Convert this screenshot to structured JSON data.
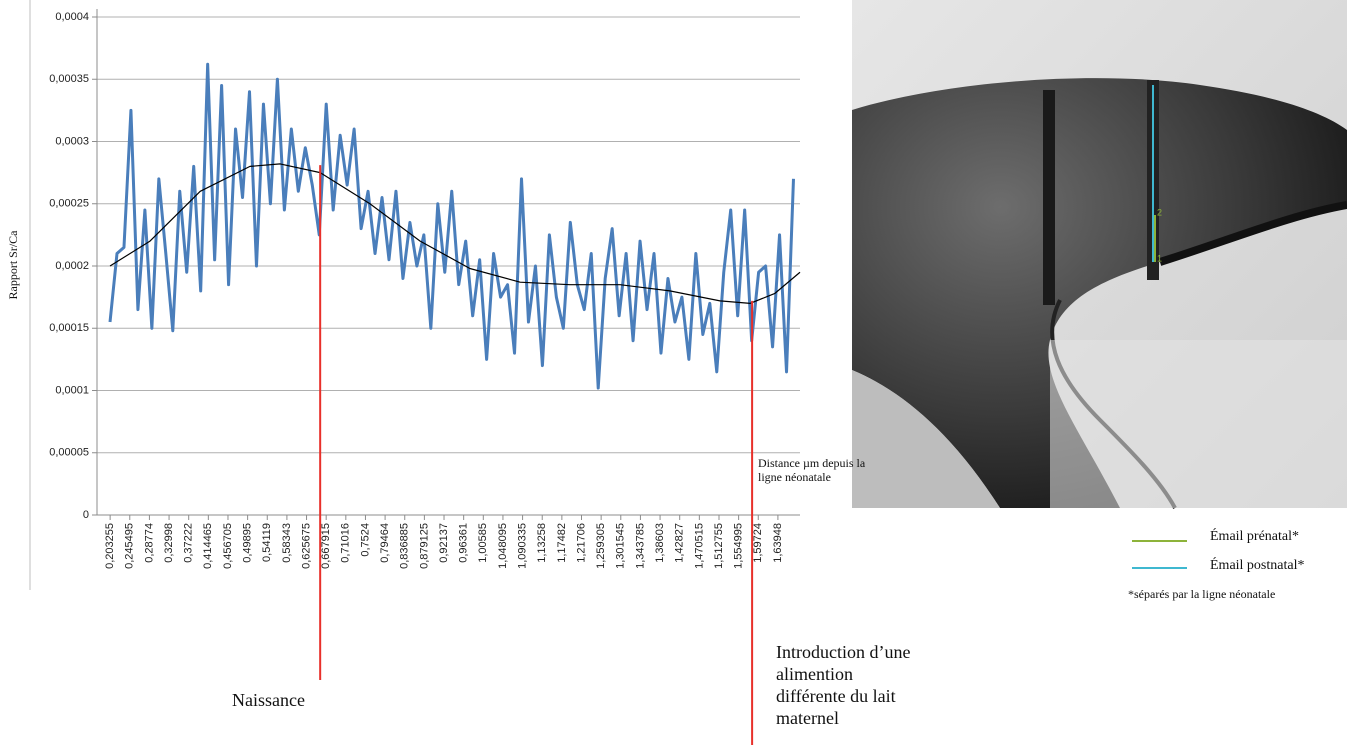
{
  "chart_data": {
    "type": "line",
    "y_label": "Rapport Sr/Ca",
    "x_label": "Distance µm depuis la ligne néonatale",
    "xlim": [
      0.175,
      1.687
    ],
    "ylim": [
      0,
      0.0004
    ],
    "grid": true,
    "yticks": [
      0,
      {
        "value": 5e-05,
        "label": "0,00005"
      },
      {
        "value": 0.0001,
        "label": "0,0001"
      },
      {
        "value": 0.00015,
        "label": "0,00015"
      },
      {
        "value": 0.0002,
        "label": "0,0002"
      },
      {
        "value": 0.00025,
        "label": "0,00025"
      },
      {
        "value": 0.0003,
        "label": "0,0003"
      },
      {
        "value": 0.00035,
        "label": "0,00035"
      },
      {
        "value": 0.0004,
        "label": "0,0004"
      }
    ],
    "xticks": [
      {
        "value": 0.203255,
        "label": "0,203255"
      },
      {
        "value": 0.245495,
        "label": "0,245495"
      },
      {
        "value": 0.28774,
        "label": "0,28774"
      },
      {
        "value": 0.32998,
        "label": "0,32998"
      },
      {
        "value": 0.37222,
        "label": "0,37222"
      },
      {
        "value": 0.414465,
        "label": "0,414465"
      },
      {
        "value": 0.456705,
        "label": "0,456705"
      },
      {
        "value": 0.49895,
        "label": "0,49895"
      },
      {
        "value": 0.54119,
        "label": "0,54119"
      },
      {
        "value": 0.58343,
        "label": "0,58343"
      },
      {
        "value": 0.625675,
        "label": "0,625675"
      },
      {
        "value": 0.667915,
        "label": "0,667915"
      },
      {
        "value": 0.71016,
        "label": "0,71016"
      },
      {
        "value": 0.7524,
        "label": "0,7524"
      },
      {
        "value": 0.79464,
        "label": "0,79464"
      },
      {
        "value": 0.836885,
        "label": "0,836885"
      },
      {
        "value": 0.879125,
        "label": "0,879125"
      },
      {
        "value": 0.92137,
        "label": "0,92137"
      },
      {
        "value": 0.96361,
        "label": "0,96361"
      },
      {
        "value": 1.00585,
        "label": "1,00585"
      },
      {
        "value": 1.048095,
        "label": "1,048095"
      },
      {
        "value": 1.090335,
        "label": "1,090335"
      },
      {
        "value": 1.13258,
        "label": "1,13258"
      },
      {
        "value": 1.17482,
        "label": "1,17482"
      },
      {
        "value": 1.21706,
        "label": "1,21706"
      },
      {
        "value": 1.259305,
        "label": "1,259305"
      },
      {
        "value": 1.301545,
        "label": "1,301545"
      },
      {
        "value": 1.343785,
        "label": "1,343785"
      },
      {
        "value": 1.38603,
        "label": "1,38603"
      },
      {
        "value": 1.42827,
        "label": "1,42827"
      },
      {
        "value": 1.470515,
        "label": "1,470515"
      },
      {
        "value": 1.512755,
        "label": "1,512755"
      },
      {
        "value": 1.554995,
        "label": "1,554995"
      },
      {
        "value": 1.59724,
        "label": "1,59724"
      },
      {
        "value": 1.63948,
        "label": "1,63948"
      }
    ],
    "series": [
      {
        "color": "#4a7ebb",
        "x": [
          0.203,
          0.218,
          0.233,
          0.248,
          0.263,
          0.278,
          0.293,
          0.308,
          0.323,
          0.338,
          0.353,
          0.368,
          0.383,
          0.398,
          0.413,
          0.428,
          0.443,
          0.458,
          0.473,
          0.488,
          0.503,
          0.518,
          0.533,
          0.548,
          0.563,
          0.578,
          0.593,
          0.608,
          0.623,
          0.638,
          0.653,
          0.668,
          0.683,
          0.698,
          0.713,
          0.728,
          0.743,
          0.758,
          0.773,
          0.788,
          0.803,
          0.818,
          0.833,
          0.848,
          0.863,
          0.878,
          0.893,
          0.908,
          0.923,
          0.938,
          0.953,
          0.968,
          0.983,
          0.998,
          1.013,
          1.028,
          1.043,
          1.058,
          1.073,
          1.088,
          1.103,
          1.118,
          1.133,
          1.148,
          1.163,
          1.178,
          1.193,
          1.208,
          1.223,
          1.238,
          1.253,
          1.268,
          1.283,
          1.298,
          1.313,
          1.328,
          1.343,
          1.358,
          1.373,
          1.388,
          1.403,
          1.418,
          1.433,
          1.448,
          1.463,
          1.478,
          1.493,
          1.508,
          1.523,
          1.538,
          1.553,
          1.568,
          1.583,
          1.598,
          1.613,
          1.628,
          1.643,
          1.658,
          1.673
        ],
        "values": [
          0.000155,
          0.00021,
          0.000215,
          0.000325,
          0.000165,
          0.000245,
          0.00015,
          0.00027,
          0.00021,
          0.000148,
          0.00026,
          0.000195,
          0.00028,
          0.00018,
          0.000362,
          0.000205,
          0.000345,
          0.000185,
          0.00031,
          0.000255,
          0.00034,
          0.0002,
          0.00033,
          0.00025,
          0.00035,
          0.000245,
          0.00031,
          0.00026,
          0.000295,
          0.000265,
          0.000225,
          0.00033,
          0.000245,
          0.000305,
          0.000265,
          0.00031,
          0.00023,
          0.00026,
          0.00021,
          0.000255,
          0.000205,
          0.00026,
          0.00019,
          0.000235,
          0.0002,
          0.000225,
          0.00015,
          0.00025,
          0.000195,
          0.00026,
          0.000185,
          0.00022,
          0.00016,
          0.000205,
          0.000125,
          0.00021,
          0.000175,
          0.000185,
          0.00013,
          0.00027,
          0.000155,
          0.0002,
          0.00012,
          0.000225,
          0.000175,
          0.00015,
          0.000235,
          0.000185,
          0.000165,
          0.00021,
          0.000102,
          0.00019,
          0.00023,
          0.00016,
          0.00021,
          0.00014,
          0.00022,
          0.000165,
          0.00021,
          0.00013,
          0.00019,
          0.000155,
          0.000175,
          0.000125,
          0.00021,
          0.000145,
          0.00017,
          0.000115,
          0.000195,
          0.000245,
          0.00016,
          0.000245,
          0.00014,
          0.000195,
          0.0002,
          0.000135,
          0.000225,
          0.000115,
          0.00027
        ]
      },
      {
        "color": "#000000",
        "x": [
          0.203,
          0.289,
          0.397,
          0.504,
          0.569,
          0.655,
          0.762,
          0.87,
          0.977,
          1.085,
          1.192,
          1.3,
          1.407,
          1.515,
          1.58,
          1.633,
          1.687
        ],
        "values": [
          0.0002,
          0.00022,
          0.00026,
          0.00028,
          0.000282,
          0.000275,
          0.00025,
          0.00022,
          0.000198,
          0.000187,
          0.000185,
          0.000185,
          0.00018,
          0.000172,
          0.00017,
          0.000178,
          0.000195
        ]
      }
    ],
    "annotations": [
      {
        "text": "Naissance",
        "x": 0.655,
        "y": 0.000281,
        "color": "#e8302a"
      },
      {
        "text": "Introduction d’une alimention différente du lait maternel",
        "x": 1.584,
        "y": 0.000172,
        "color": "#e8302a"
      }
    ]
  },
  "image": {
    "labels": [
      "2",
      "1"
    ],
    "legend": [
      {
        "label": "Émail prénatal*",
        "color": "#8db33a"
      },
      {
        "label": "Émail postnatal*",
        "color": "#3fb8d0"
      }
    ],
    "note": "*séparés par la ligne néonatale"
  }
}
